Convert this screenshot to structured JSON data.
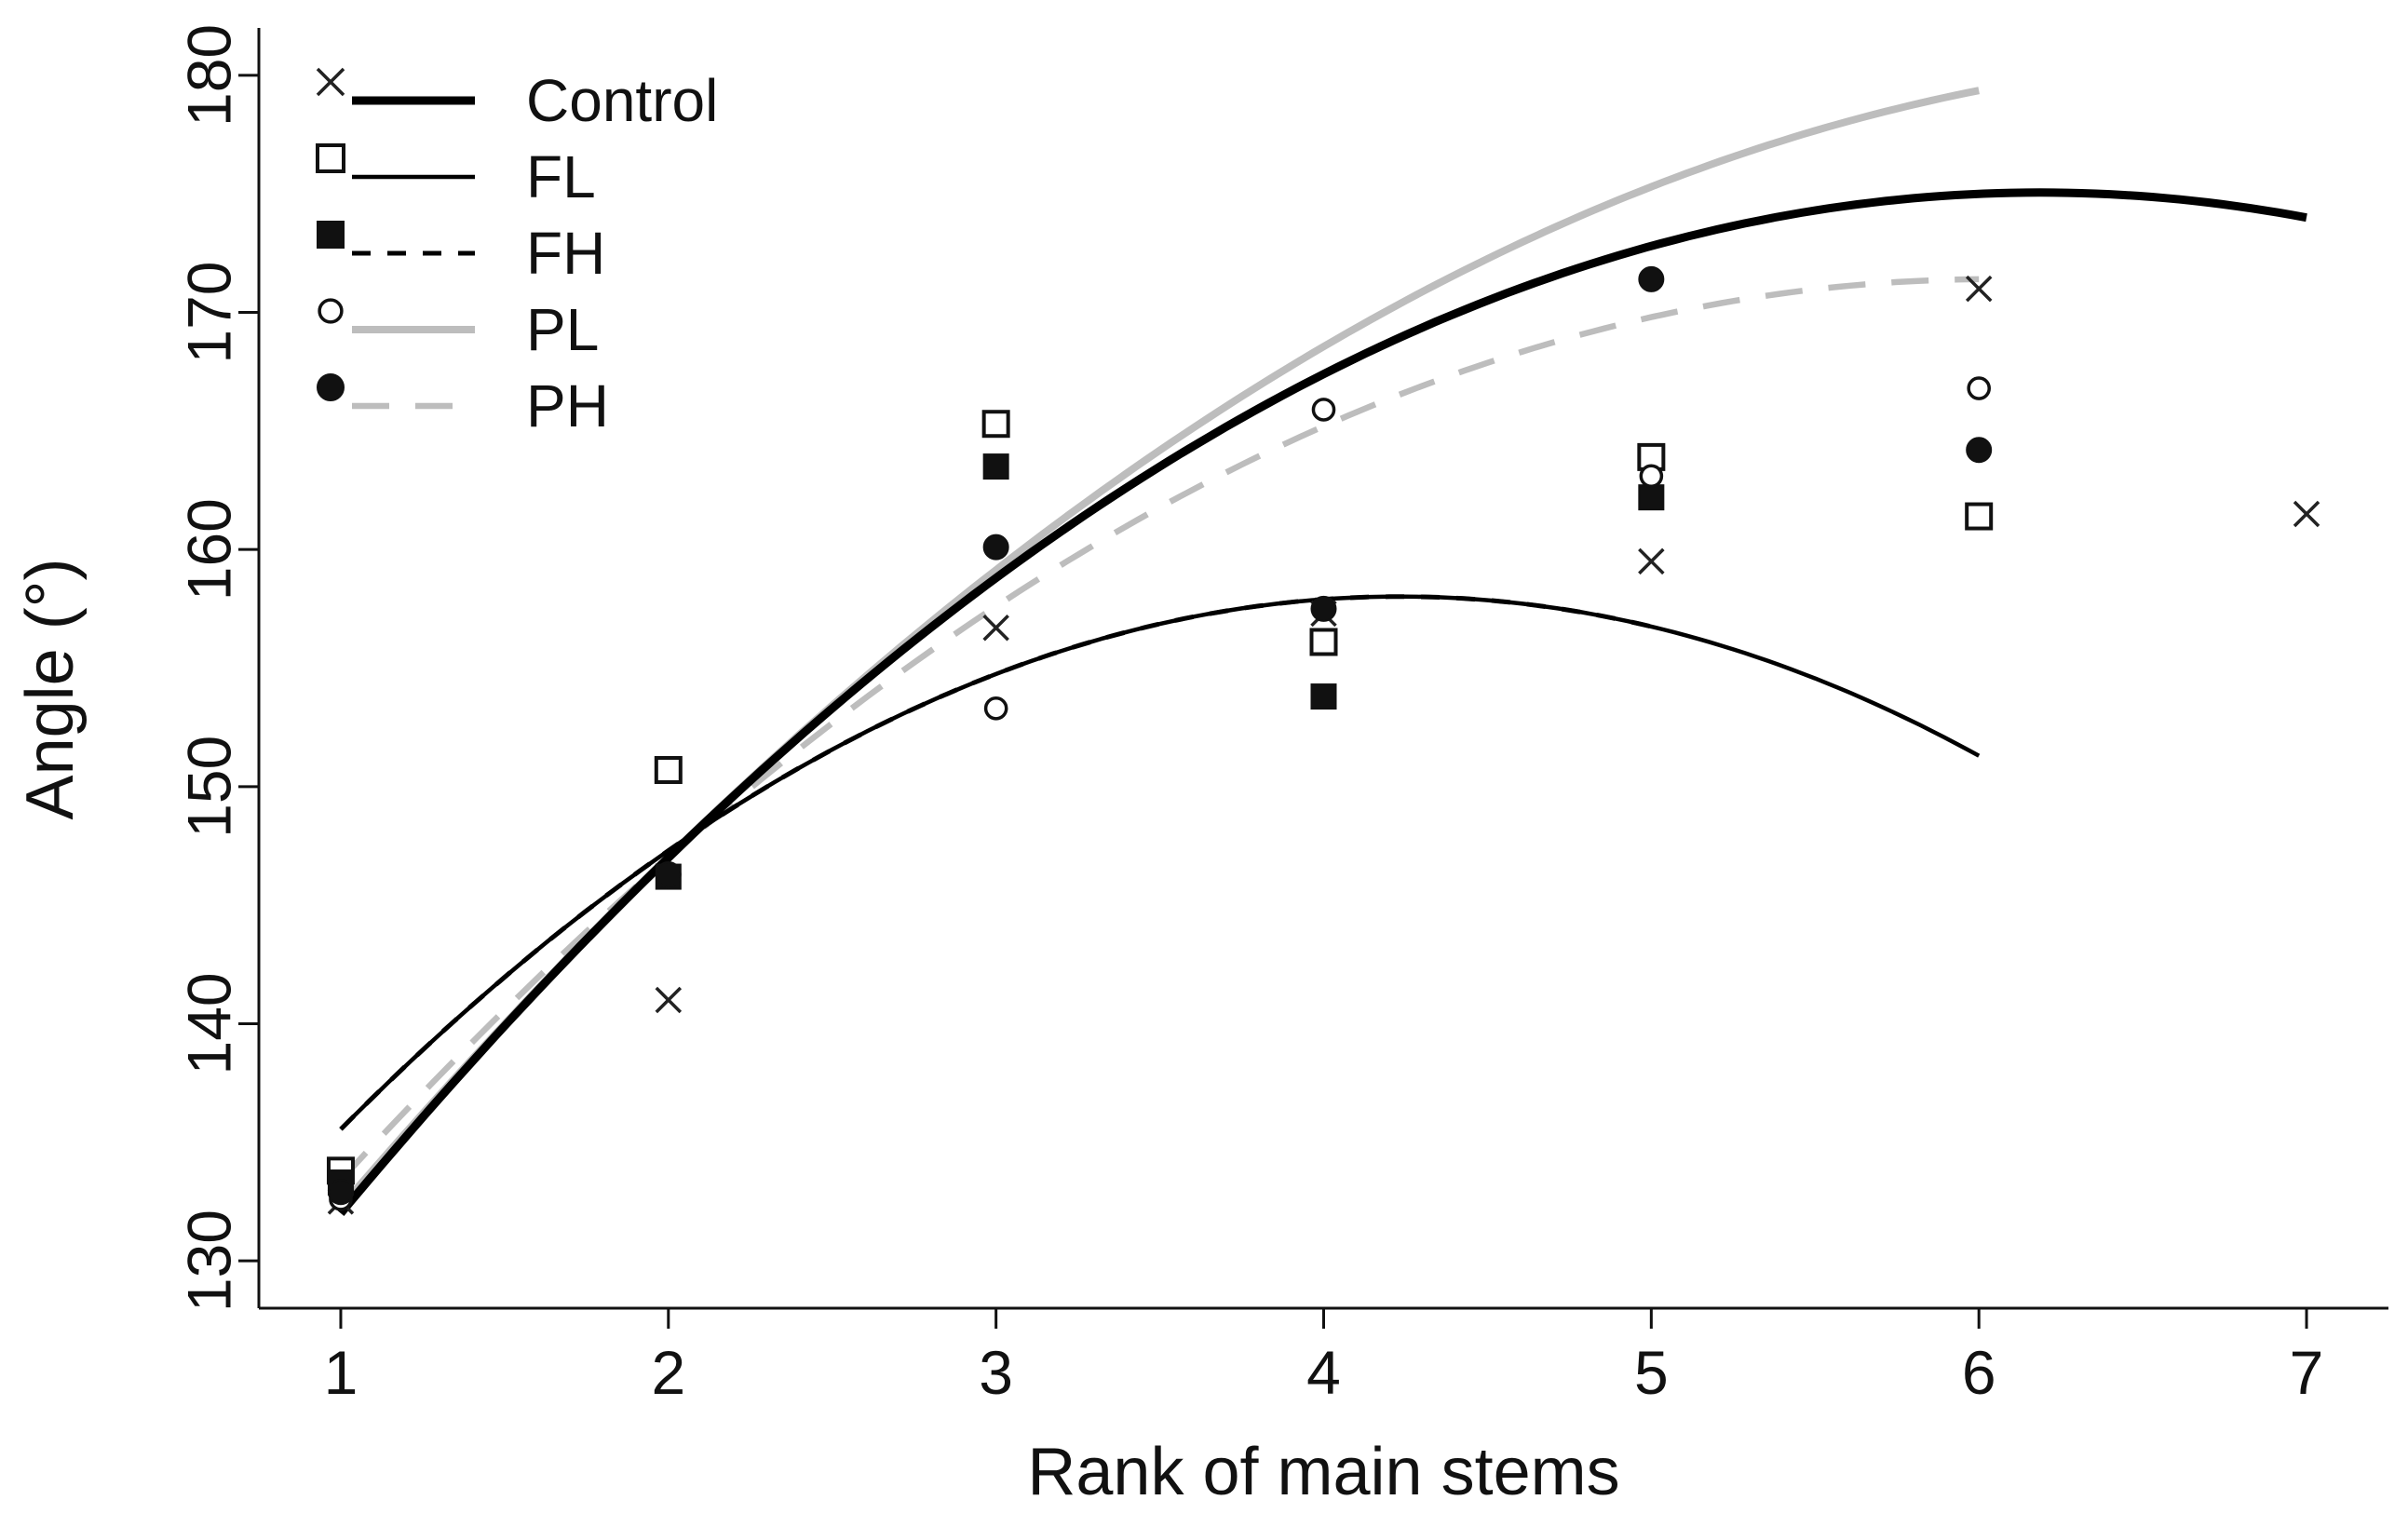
{
  "chart_data": {
    "type": "scatter",
    "title": "",
    "xlabel": "Rank of main stems",
    "ylabel": "Angle (°)",
    "xlim": [
      0.75,
      7.25
    ],
    "ylim": [
      128,
      182
    ],
    "xticks": [
      1,
      2,
      3,
      4,
      5,
      6,
      7
    ],
    "yticks": [
      130,
      140,
      150,
      160,
      170,
      180
    ],
    "grid": false,
    "legend_position": "top-left",
    "series": [
      {
        "name": "Control",
        "marker": "x",
        "line": "solid",
        "line_color": "#000000",
        "points": [
          [
            1,
            132.5
          ],
          [
            2,
            141
          ],
          [
            3,
            156.7
          ],
          [
            4,
            157.3
          ],
          [
            5,
            159.5
          ],
          [
            6,
            171
          ],
          [
            7,
            161.5
          ]
        ],
        "fit": {
          "coef": [
            -1.6,
            19.8,
            113.8
          ],
          "x_range": [
            1,
            7
          ]
        }
      },
      {
        "name": "FL",
        "marker": "open-square",
        "line": "solid-thin",
        "line_color": "#000000",
        "points": [
          [
            1,
            133.8
          ],
          [
            2,
            150.7
          ],
          [
            3,
            165.3
          ],
          [
            4,
            156.1
          ],
          [
            5,
            163.9
          ],
          [
            6,
            161.4
          ]
        ],
        "fit": {
          "coef": [
            -2.15,
            18.2,
            119.5
          ],
          "x_range": [
            1,
            6
          ]
        }
      },
      {
        "name": "FH",
        "marker": "filled-square",
        "line": "dashed",
        "line_color": "#000000",
        "points": [
          [
            1,
            133.3
          ],
          [
            2,
            146.2
          ],
          [
            3,
            163.5
          ],
          [
            4,
            153.8
          ],
          [
            5,
            162.2
          ]
        ],
        "fit": {
          "coef": [
            -2.15,
            18.2,
            119.5
          ],
          "x_range": [
            1,
            5
          ]
        }
      },
      {
        "name": "PL",
        "marker": "open-circle",
        "line": "solid",
        "line_color": "#bdbdbd",
        "points": [
          [
            1,
            132.6
          ],
          [
            2,
            146.2
          ],
          [
            3,
            153.3
          ],
          [
            4,
            165.9
          ],
          [
            5,
            163.1
          ],
          [
            6,
            166.8
          ]
        ],
        "fit": {
          "coef": [
            -1.34,
            18.8,
            114.8
          ],
          "x_range": [
            1,
            6
          ]
        }
      },
      {
        "name": "PH",
        "marker": "filled-circle",
        "line": "dashed",
        "line_color": "#bdbdbd",
        "points": [
          [
            1,
            132.9
          ],
          [
            2,
            146.3
          ],
          [
            3,
            160.1
          ],
          [
            4,
            157.5
          ],
          [
            5,
            171.4
          ],
          [
            6,
            164.2
          ]
        ],
        "fit": {
          "coef": [
            -1.5,
            18.1,
            116.8
          ],
          "x_range": [
            1,
            6
          ]
        }
      }
    ]
  }
}
